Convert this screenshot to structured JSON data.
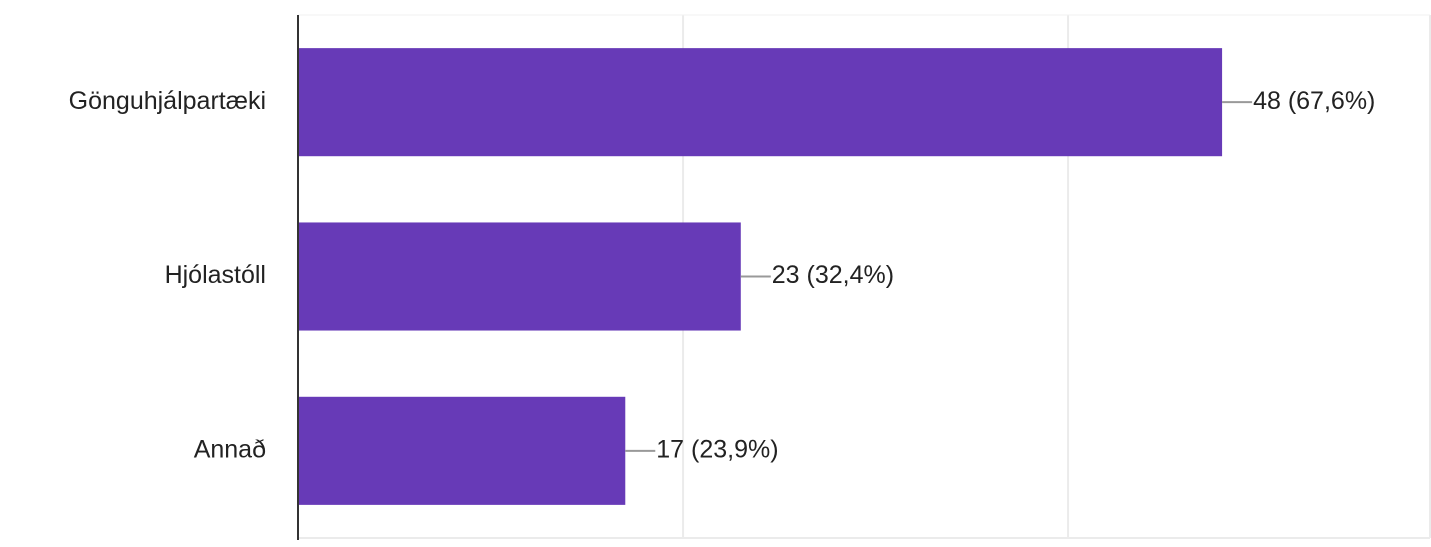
{
  "chart_data": {
    "type": "bar",
    "orientation": "horizontal",
    "categories": [
      "Gönguhjálpartæki",
      "Hjólastóll",
      "Annað"
    ],
    "values": [
      48,
      23,
      17
    ],
    "value_labels": [
      "48 (67,6%)",
      "23 (32,4%)",
      "17 (23,9%)"
    ],
    "color": "#673ab7",
    "xlim": [
      0,
      58.8
    ],
    "xticks": [
      0,
      20,
      40
    ],
    "grid": true
  }
}
